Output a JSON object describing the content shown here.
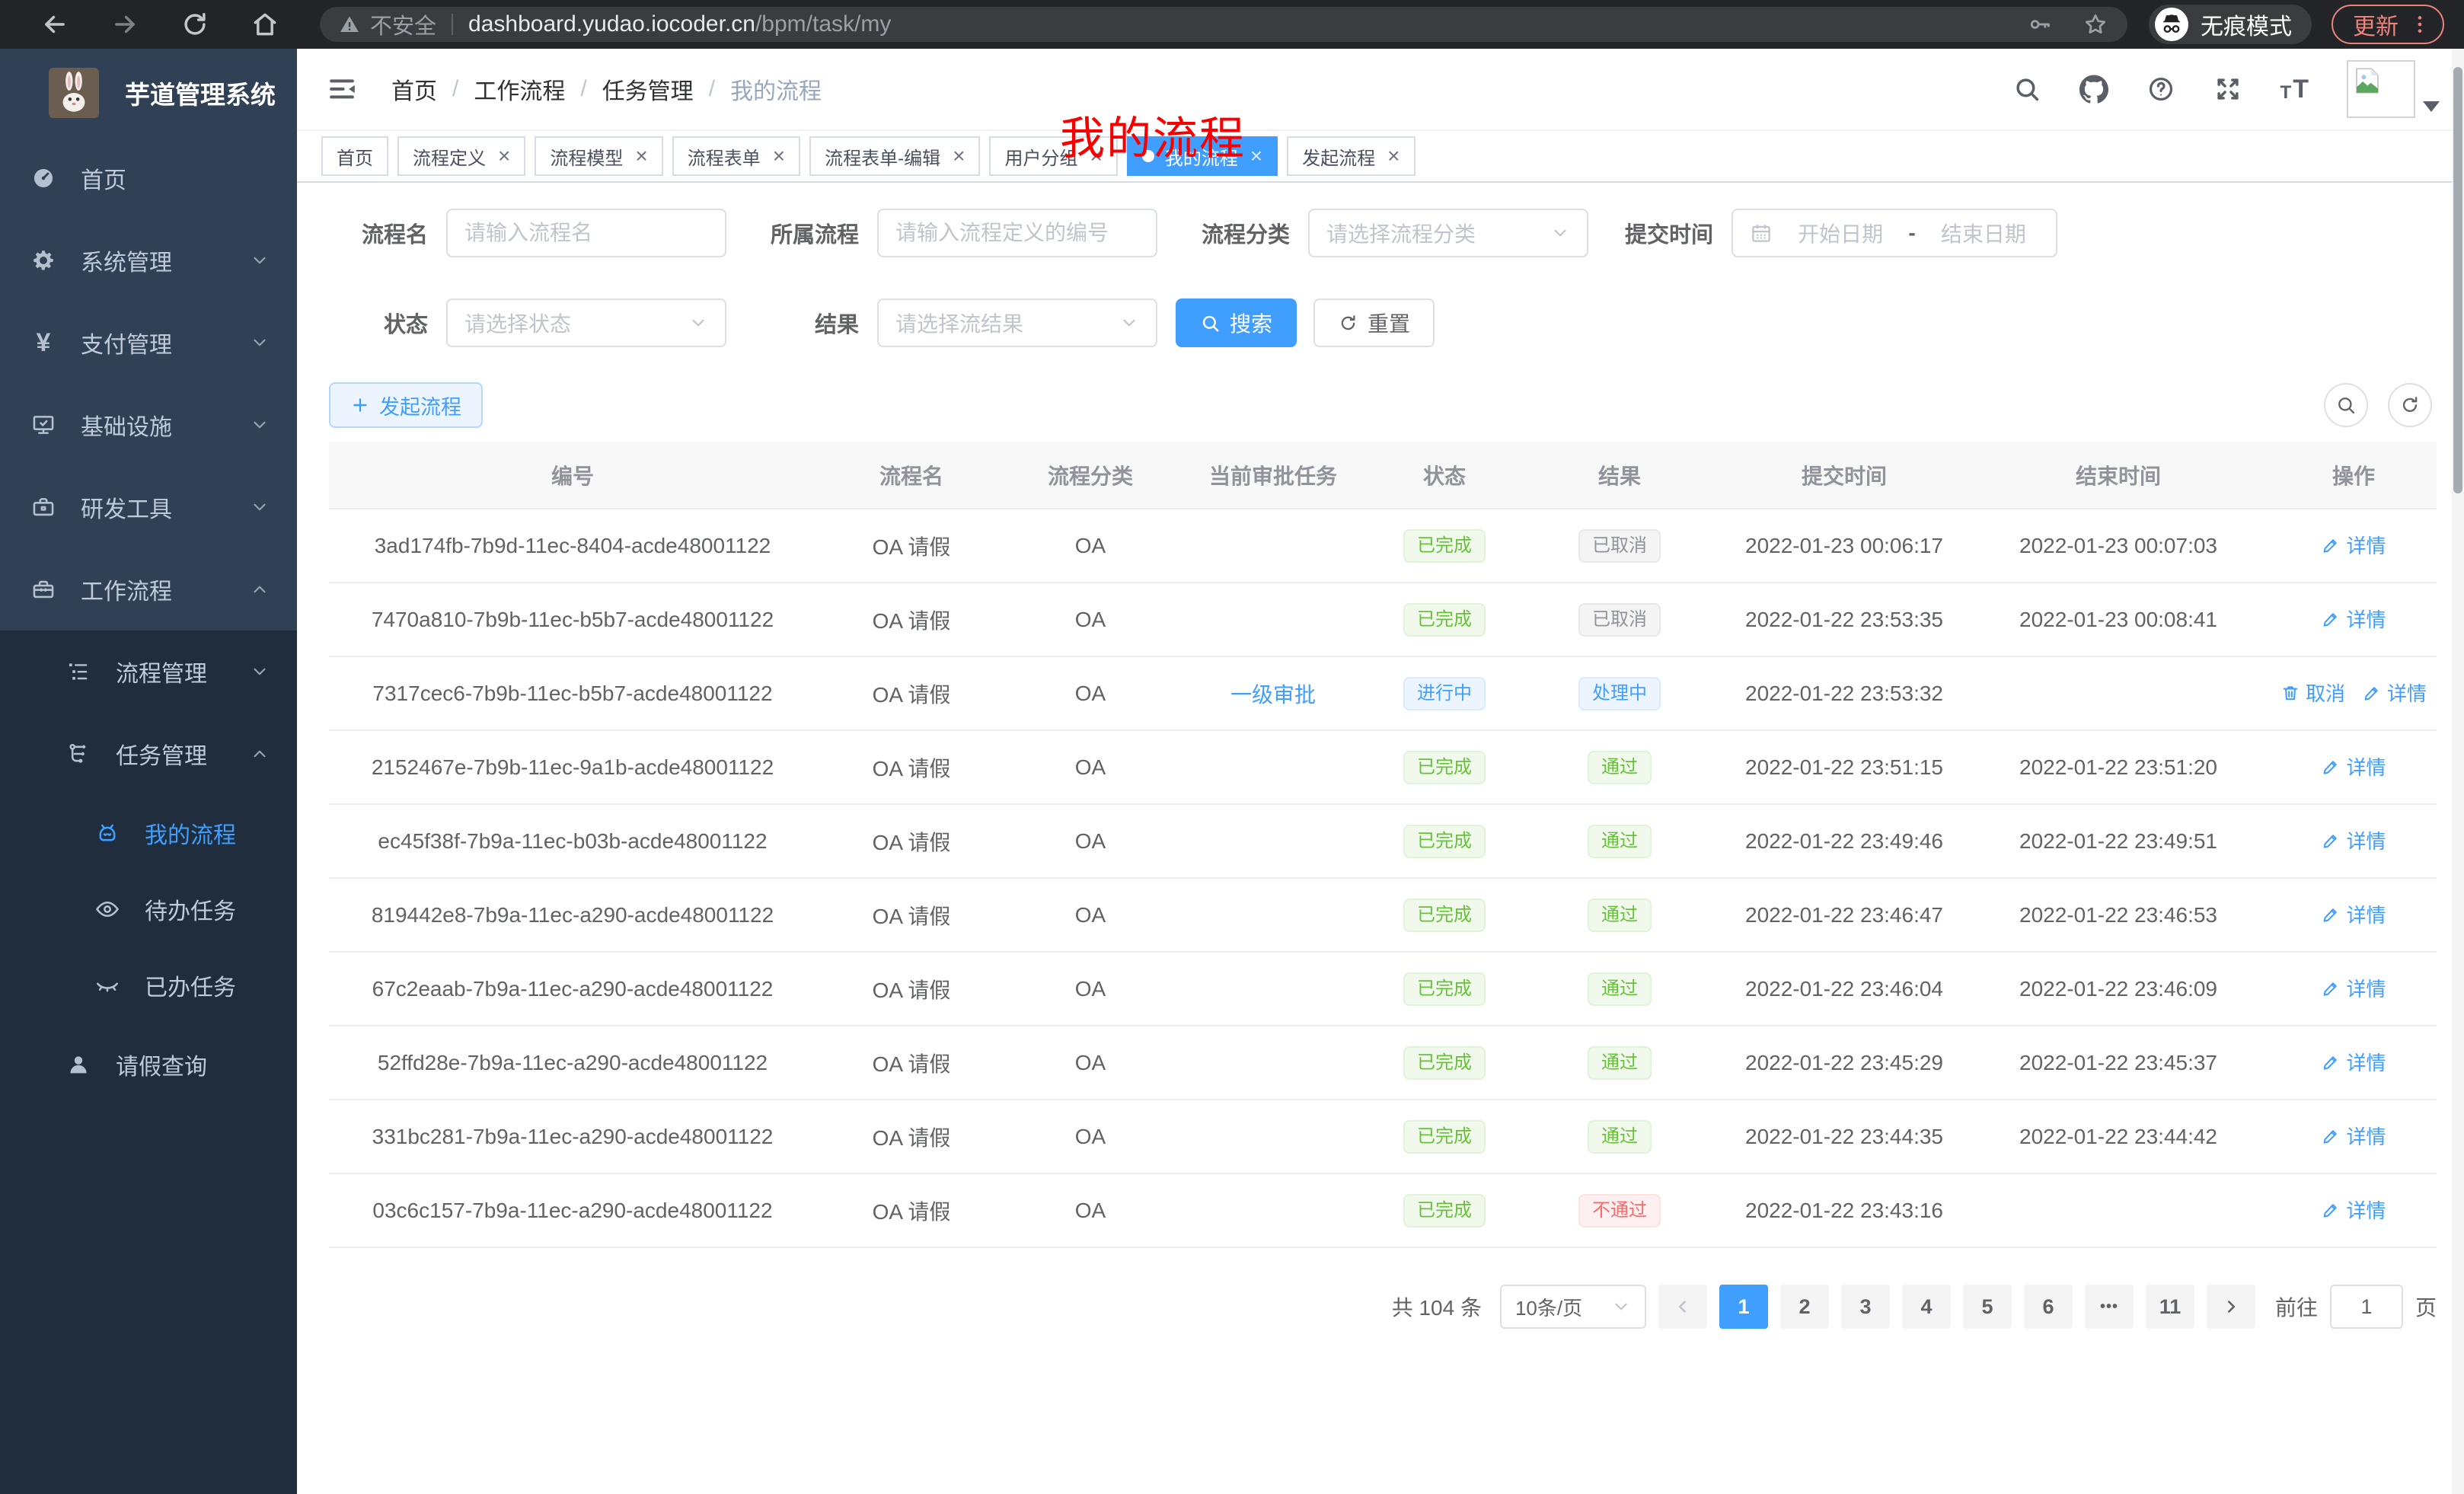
{
  "browser": {
    "security_label": "不安全",
    "url_host": "dashboard.yudao.iocoder.cn",
    "url_path": "/bpm/task/my",
    "incognito_label": "无痕模式",
    "update_label": "更新"
  },
  "sidebar": {
    "app_title": "芋道管理系统",
    "items": [
      {
        "label": "首页",
        "icon": "dashboard-icon",
        "level": 1
      },
      {
        "label": "系统管理",
        "icon": "gear-icon",
        "level": 1,
        "chevron": "down"
      },
      {
        "label": "支付管理",
        "icon": "yen-icon",
        "level": 1,
        "chevron": "down"
      },
      {
        "label": "基础设施",
        "icon": "monitor-icon",
        "level": 1,
        "chevron": "down"
      },
      {
        "label": "研发工具",
        "icon": "briefcase-icon",
        "level": 1,
        "chevron": "down"
      },
      {
        "label": "工作流程",
        "icon": "toolbox-icon",
        "level": 1,
        "chevron": "up"
      },
      {
        "label": "流程管理",
        "icon": "tree-icon",
        "level": 2,
        "sub": true,
        "chevron": "down"
      },
      {
        "label": "任务管理",
        "icon": "flow-icon",
        "level": 2,
        "sub": true,
        "chevron": "up"
      },
      {
        "label": "我的流程",
        "icon": "robot-icon",
        "level": 3,
        "sub": true,
        "active": true
      },
      {
        "label": "待办任务",
        "icon": "eye-icon",
        "level": 3,
        "sub": true
      },
      {
        "label": "已办任务",
        "icon": "eye-closed-icon",
        "level": 3,
        "sub": true
      },
      {
        "label": "请假查询",
        "icon": "user-icon",
        "level": 2,
        "sub": true
      }
    ]
  },
  "navbar": {
    "breadcrumb": [
      "首页",
      "工作流程",
      "任务管理",
      "我的流程"
    ],
    "overlay_title": "我的流程"
  },
  "tabs": [
    {
      "label": "首页"
    },
    {
      "label": "流程定义",
      "closable": true
    },
    {
      "label": "流程模型",
      "closable": true
    },
    {
      "label": "流程表单",
      "closable": true
    },
    {
      "label": "流程表单-编辑",
      "closable": true
    },
    {
      "label": "用户分组",
      "closable": true
    },
    {
      "label": "我的流程",
      "closable": true,
      "active": true
    },
    {
      "label": "发起流程",
      "closable": true
    }
  ],
  "filters": {
    "name_label": "流程名",
    "name_placeholder": "请输入流程名",
    "definition_label": "所属流程",
    "definition_placeholder": "请输入流程定义的编号",
    "category_label": "流程分类",
    "category_placeholder": "请选择流程分类",
    "time_label": "提交时间",
    "time_start_placeholder": "开始日期",
    "time_separator": "-",
    "time_end_placeholder": "结束日期",
    "status_label": "状态",
    "status_placeholder": "请选择状态",
    "result_label": "结果",
    "result_placeholder": "请选择流结果",
    "search_label": "搜索",
    "reset_label": "重置"
  },
  "toolbar": {
    "create_label": "发起流程"
  },
  "table": {
    "columns": [
      "编号",
      "流程名",
      "流程分类",
      "当前审批任务",
      "状态",
      "结果",
      "提交时间",
      "结束时间",
      "操作"
    ],
    "rows": [
      {
        "id": "3ad174fb-7b9d-11ec-8404-acde48001122",
        "name": "OA 请假",
        "category": "OA",
        "task": "",
        "status": {
          "text": "已完成",
          "type": "success"
        },
        "result": {
          "text": "已取消",
          "type": "info"
        },
        "submit_time": "2022-01-23 00:06:17",
        "end_time": "2022-01-23 00:07:03",
        "actions": [
          {
            "label": "详情",
            "icon": "edit-icon"
          }
        ]
      },
      {
        "id": "7470a810-7b9b-11ec-b5b7-acde48001122",
        "name": "OA 请假",
        "category": "OA",
        "task": "",
        "status": {
          "text": "已完成",
          "type": "success"
        },
        "result": {
          "text": "已取消",
          "type": "info"
        },
        "submit_time": "2022-01-22 23:53:35",
        "end_time": "2022-01-23 00:08:41",
        "actions": [
          {
            "label": "详情",
            "icon": "edit-icon"
          }
        ]
      },
      {
        "id": "7317cec6-7b9b-11ec-b5b7-acde48001122",
        "name": "OA 请假",
        "category": "OA",
        "task": "一级审批",
        "status": {
          "text": "进行中",
          "type": "primary"
        },
        "result": {
          "text": "处理中",
          "type": "primary"
        },
        "submit_time": "2022-01-22 23:53:32",
        "end_time": "",
        "actions": [
          {
            "label": "取消",
            "icon": "trash-icon"
          },
          {
            "label": "详情",
            "icon": "edit-icon"
          }
        ]
      },
      {
        "id": "2152467e-7b9b-11ec-9a1b-acde48001122",
        "name": "OA 请假",
        "category": "OA",
        "task": "",
        "status": {
          "text": "已完成",
          "type": "success"
        },
        "result": {
          "text": "通过",
          "type": "success"
        },
        "submit_time": "2022-01-22 23:51:15",
        "end_time": "2022-01-22 23:51:20",
        "actions": [
          {
            "label": "详情",
            "icon": "edit-icon"
          }
        ]
      },
      {
        "id": "ec45f38f-7b9a-11ec-b03b-acde48001122",
        "name": "OA 请假",
        "category": "OA",
        "task": "",
        "status": {
          "text": "已完成",
          "type": "success"
        },
        "result": {
          "text": "通过",
          "type": "success"
        },
        "submit_time": "2022-01-22 23:49:46",
        "end_time": "2022-01-22 23:49:51",
        "actions": [
          {
            "label": "详情",
            "icon": "edit-icon"
          }
        ]
      },
      {
        "id": "819442e8-7b9a-11ec-a290-acde48001122",
        "name": "OA 请假",
        "category": "OA",
        "task": "",
        "status": {
          "text": "已完成",
          "type": "success"
        },
        "result": {
          "text": "通过",
          "type": "success"
        },
        "submit_time": "2022-01-22 23:46:47",
        "end_time": "2022-01-22 23:46:53",
        "actions": [
          {
            "label": "详情",
            "icon": "edit-icon"
          }
        ]
      },
      {
        "id": "67c2eaab-7b9a-11ec-a290-acde48001122",
        "name": "OA 请假",
        "category": "OA",
        "task": "",
        "status": {
          "text": "已完成",
          "type": "success"
        },
        "result": {
          "text": "通过",
          "type": "success"
        },
        "submit_time": "2022-01-22 23:46:04",
        "end_time": "2022-01-22 23:46:09",
        "actions": [
          {
            "label": "详情",
            "icon": "edit-icon"
          }
        ]
      },
      {
        "id": "52ffd28e-7b9a-11ec-a290-acde48001122",
        "name": "OA 请假",
        "category": "OA",
        "task": "",
        "status": {
          "text": "已完成",
          "type": "success"
        },
        "result": {
          "text": "通过",
          "type": "success"
        },
        "submit_time": "2022-01-22 23:45:29",
        "end_time": "2022-01-22 23:45:37",
        "actions": [
          {
            "label": "详情",
            "icon": "edit-icon"
          }
        ]
      },
      {
        "id": "331bc281-7b9a-11ec-a290-acde48001122",
        "name": "OA 请假",
        "category": "OA",
        "task": "",
        "status": {
          "text": "已完成",
          "type": "success"
        },
        "result": {
          "text": "通过",
          "type": "success"
        },
        "submit_time": "2022-01-22 23:44:35",
        "end_time": "2022-01-22 23:44:42",
        "actions": [
          {
            "label": "详情",
            "icon": "edit-icon"
          }
        ]
      },
      {
        "id": "03c6c157-7b9a-11ec-a290-acde48001122",
        "name": "OA 请假",
        "category": "OA",
        "task": "",
        "status": {
          "text": "已完成",
          "type": "success"
        },
        "result": {
          "text": "不通过",
          "type": "danger"
        },
        "submit_time": "2022-01-22 23:43:16",
        "end_time": "",
        "actions": [
          {
            "label": "详情",
            "icon": "edit-icon"
          }
        ]
      }
    ]
  },
  "pagination": {
    "total_label": "共 104 条",
    "page_size": "10条/页",
    "pages": [
      "1",
      "2",
      "3",
      "4",
      "5",
      "6",
      "•••",
      "11"
    ],
    "active_page": "1",
    "goto_label": "前往",
    "goto_value": "1",
    "goto_suffix": "页"
  }
}
